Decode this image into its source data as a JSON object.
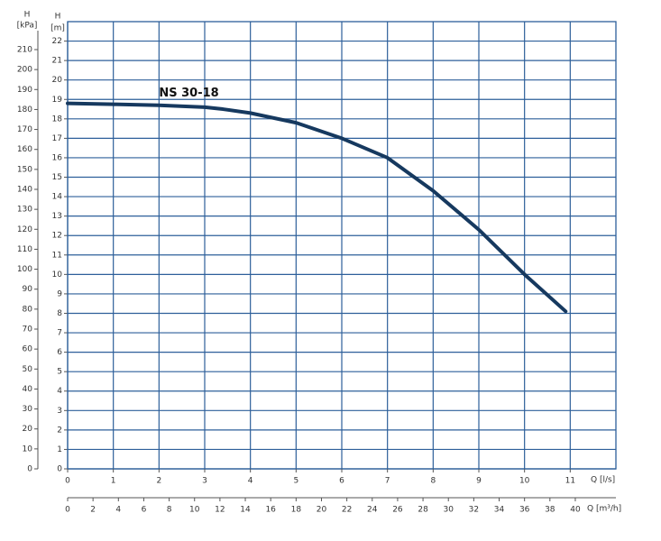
{
  "chart_data": {
    "type": "line",
    "x": [
      0,
      1,
      2,
      3,
      3.4,
      4,
      5,
      6,
      7,
      8,
      9,
      10,
      10.9
    ],
    "series": [
      {
        "name": "NS 30-18",
        "color": "#16395f",
        "values": [
          18.8,
          18.75,
          18.7,
          18.6,
          18.5,
          18.3,
          17.8,
          17.0,
          16.0,
          14.3,
          12.3,
          10.0,
          8.1
        ]
      }
    ],
    "xlim": [
      0,
      12
    ],
    "xticks": [
      0,
      1,
      2,
      3,
      4,
      5,
      6,
      7,
      8,
      9,
      10,
      11
    ],
    "x_label": "Q [l/s]",
    "x2lim": [
      0,
      43.2
    ],
    "x2ticks": [
      0,
      2,
      4,
      6,
      8,
      10,
      12,
      14,
      16,
      18,
      20,
      22,
      24,
      26,
      28,
      30,
      32,
      34,
      36,
      38,
      40
    ],
    "x2_label": "Q [m³/h]",
    "ylim": [
      0,
      23
    ],
    "yticks": [
      0,
      1,
      2,
      3,
      4,
      5,
      6,
      7,
      8,
      9,
      10,
      11,
      12,
      13,
      14,
      15,
      16,
      17,
      18,
      19,
      20,
      21,
      22
    ],
    "y_label": "H",
    "y_unit": "[m]",
    "y2lim": [
      0,
      224
    ],
    "y2ticks": [
      0,
      10,
      20,
      30,
      40,
      50,
      60,
      70,
      80,
      90,
      100,
      110,
      120,
      130,
      140,
      150,
      160,
      170,
      180,
      190,
      200,
      210
    ],
    "y2_label": "H",
    "y2_unit": "[kPa]",
    "grid": true,
    "grid_color": "#2d5f9a"
  }
}
